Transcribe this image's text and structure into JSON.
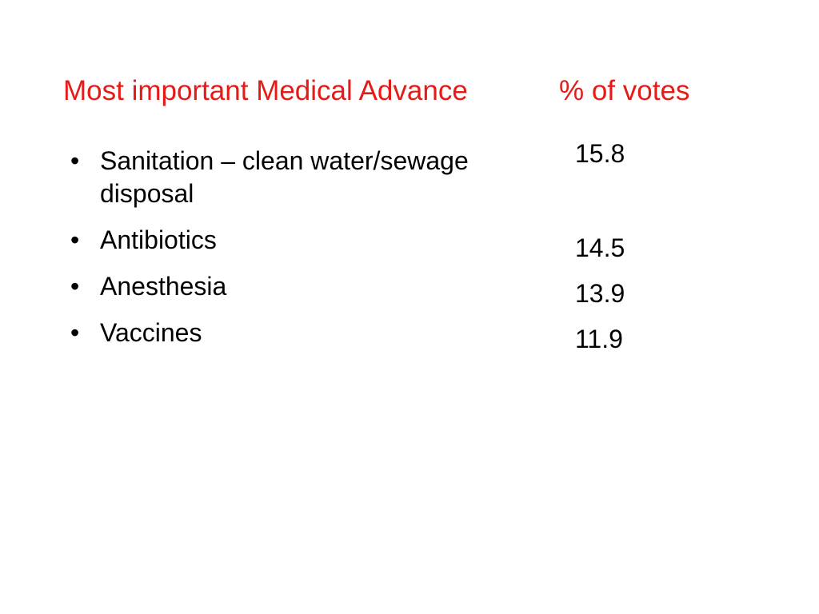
{
  "header": {
    "column_left": "Most important Medical Advance",
    "column_right": "% of votes",
    "color": "#e41b17"
  },
  "rows": [
    {
      "label": "Sanitation – clean water/sewage disposal",
      "value": "15.8"
    },
    {
      "label": "Antibiotics",
      "value": "14.5"
    },
    {
      "label": "Anesthesia",
      "value": "13.9"
    },
    {
      "label": "Vaccines",
      "value": "11.9"
    }
  ]
}
